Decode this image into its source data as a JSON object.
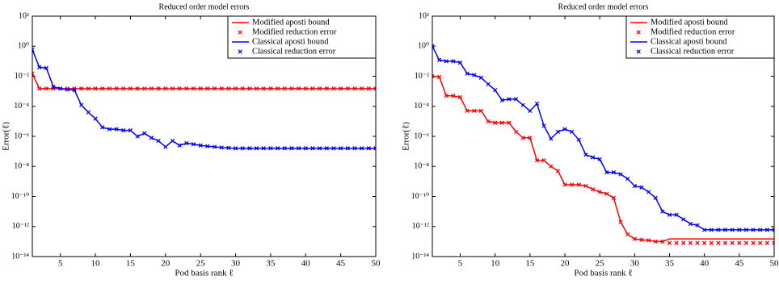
{
  "chart_data": [
    {
      "type": "line",
      "title": "Reduced order model errors",
      "xlabel": "Pod basis rank ℓ",
      "ylabel": "Error(ℓ)",
      "log_y": true,
      "legend": "upper right",
      "xlim": [
        1,
        50
      ],
      "ylim": [
        1e-14,
        100
      ],
      "xticks": [
        5,
        10,
        15,
        20,
        25,
        30,
        35,
        40,
        45,
        50
      ],
      "yticks": [
        {
          "value": 1e-14,
          "label": "10⁻¹⁴"
        },
        {
          "value": 1e-12,
          "label": "10⁻¹²"
        },
        {
          "value": 1e-10,
          "label": "10⁻¹⁰"
        },
        {
          "value": 1e-08,
          "label": "10⁻⁸"
        },
        {
          "value": 1e-06,
          "label": "10⁻⁶"
        },
        {
          "value": 0.0001,
          "label": "10⁻⁴"
        },
        {
          "value": 0.01,
          "label": "10⁻²"
        },
        {
          "value": 1,
          "label": "10⁰"
        },
        {
          "value": 100,
          "label": "10²"
        }
      ],
      "x": [
        1,
        2,
        3,
        4,
        5,
        6,
        7,
        8,
        9,
        10,
        11,
        12,
        13,
        14,
        15,
        16,
        17,
        18,
        19,
        20,
        21,
        22,
        23,
        24,
        25,
        26,
        27,
        28,
        29,
        30,
        31,
        32,
        33,
        34,
        35,
        36,
        37,
        38,
        39,
        40,
        41,
        42,
        43,
        44,
        45,
        46,
        47,
        48,
        49,
        50
      ],
      "series": [
        {
          "name": "Modified aposti bound",
          "color": "#ff0000",
          "style": "line",
          "values": [
            0.015,
            0.0015,
            0.0015,
            0.0015,
            0.0015,
            0.0015,
            0.0015,
            0.0015,
            0.0015,
            0.0015,
            0.0015,
            0.0015,
            0.0015,
            0.0015,
            0.0015,
            0.0015,
            0.0015,
            0.0015,
            0.0015,
            0.0015,
            0.0015,
            0.0015,
            0.0015,
            0.0015,
            0.0015,
            0.0015,
            0.0015,
            0.0015,
            0.0015,
            0.0015,
            0.0015,
            0.0015,
            0.0015,
            0.0015,
            0.0015,
            0.0015,
            0.0015,
            0.0015,
            0.0015,
            0.0015,
            0.0015,
            0.0015,
            0.0015,
            0.0015,
            0.0015,
            0.0015,
            0.0015,
            0.0015,
            0.0015,
            0.0015
          ]
        },
        {
          "name": "Modified reduction error",
          "color": "#ff0000",
          "style": "marker",
          "values": [
            0.015,
            0.0015,
            0.0015,
            0.0015,
            0.0015,
            0.0015,
            0.0015,
            0.0015,
            0.0015,
            0.0015,
            0.0015,
            0.0015,
            0.0015,
            0.0015,
            0.0015,
            0.0015,
            0.0015,
            0.0015,
            0.0015,
            0.0015,
            0.0015,
            0.0015,
            0.0015,
            0.0015,
            0.0015,
            0.0015,
            0.0015,
            0.0015,
            0.0015,
            0.0015,
            0.0015,
            0.0015,
            0.0015,
            0.0015,
            0.0015,
            0.0015,
            0.0015,
            0.0015,
            0.0015,
            0.0015,
            0.0015,
            0.0015,
            0.0015,
            0.0015,
            0.0015,
            0.0015,
            0.0015,
            0.0015,
            0.0015,
            0.0015
          ]
        },
        {
          "name": "Classical aposti bound",
          "color": "#0000ff",
          "style": "line",
          "values": [
            0.6,
            0.04,
            0.035,
            0.002,
            0.0015,
            0.0013,
            0.0012,
            0.00012,
            4e-05,
            1.5e-05,
            4e-06,
            3e-06,
            3e-06,
            2.5e-06,
            2.5e-06,
            1e-06,
            1.6e-06,
            8e-07,
            5e-07,
            2e-07,
            5e-07,
            2.5e-07,
            3.5e-07,
            3e-07,
            2.5e-07,
            2.2e-07,
            2e-07,
            1.8e-07,
            1.7e-07,
            1.6e-07,
            1.6e-07,
            1.6e-07,
            1.6e-07,
            1.6e-07,
            1.6e-07,
            1.6e-07,
            1.6e-07,
            1.6e-07,
            1.6e-07,
            1.6e-07,
            1.6e-07,
            1.6e-07,
            1.6e-07,
            1.6e-07,
            1.6e-07,
            1.6e-07,
            1.6e-07,
            1.6e-07,
            1.6e-07,
            1.6e-07
          ]
        },
        {
          "name": "Classical reduction error",
          "color": "#0000ff",
          "style": "marker",
          "values": [
            0.6,
            0.04,
            0.035,
            0.002,
            0.0015,
            0.0013,
            0.0012,
            0.00012,
            4e-05,
            1.5e-05,
            4e-06,
            3e-06,
            3e-06,
            2.5e-06,
            2.5e-06,
            1e-06,
            1.6e-06,
            8e-07,
            5e-07,
            2e-07,
            5e-07,
            2.5e-07,
            3.5e-07,
            3e-07,
            2.5e-07,
            2.2e-07,
            2e-07,
            1.8e-07,
            1.7e-07,
            1.6e-07,
            1.6e-07,
            1.6e-07,
            1.6e-07,
            1.6e-07,
            1.6e-07,
            1.6e-07,
            1.6e-07,
            1.6e-07,
            1.6e-07,
            1.6e-07,
            1.6e-07,
            1.6e-07,
            1.6e-07,
            1.6e-07,
            1.6e-07,
            1.6e-07,
            1.6e-07,
            1.6e-07,
            1.6e-07,
            1.6e-07
          ]
        }
      ]
    },
    {
      "type": "line",
      "title": "Reduced order model errors",
      "xlabel": "Pod basis rank ℓ",
      "ylabel": "Error(ℓ)",
      "log_y": true,
      "legend": "upper right",
      "xlim": [
        1,
        50
      ],
      "ylim": [
        1e-14,
        100
      ],
      "xticks": [
        5,
        10,
        15,
        20,
        25,
        30,
        35,
        40,
        45,
        50
      ],
      "yticks": [
        {
          "value": 1e-14,
          "label": "10⁻¹⁴"
        },
        {
          "value": 1e-12,
          "label": "10⁻¹²"
        },
        {
          "value": 1e-10,
          "label": "10⁻¹⁰"
        },
        {
          "value": 1e-08,
          "label": "10⁻⁸"
        },
        {
          "value": 1e-06,
          "label": "10⁻⁶"
        },
        {
          "value": 0.0001,
          "label": "10⁻⁴"
        },
        {
          "value": 0.01,
          "label": "10⁻²"
        },
        {
          "value": 1,
          "label": "10⁰"
        },
        {
          "value": 100,
          "label": "10²"
        }
      ],
      "x": [
        1,
        2,
        3,
        4,
        5,
        6,
        7,
        8,
        9,
        10,
        11,
        12,
        13,
        14,
        15,
        16,
        17,
        18,
        19,
        20,
        21,
        22,
        23,
        24,
        25,
        26,
        27,
        28,
        29,
        30,
        31,
        32,
        33,
        34,
        35,
        36,
        37,
        38,
        39,
        40,
        41,
        42,
        43,
        44,
        45,
        46,
        47,
        48,
        49,
        50
      ],
      "series": [
        {
          "name": "Modified aposti bound",
          "color": "#ff0000",
          "style": "line",
          "values": [
            0.01,
            0.009,
            0.0005,
            0.0005,
            0.0004,
            5e-05,
            5e-05,
            5e-05,
            1e-05,
            8e-06,
            8e-06,
            8e-06,
            2e-06,
            8e-07,
            8e-07,
            2.5e-08,
            2.5e-08,
            1e-08,
            5e-09,
            6e-10,
            6e-10,
            6e-10,
            5e-10,
            3e-10,
            2e-10,
            1.5e-10,
            8e-11,
            2e-12,
            3e-13,
            1.5e-13,
            1.3e-13,
            1.2e-13,
            1e-13,
            1e-13,
            1.5e-13,
            1.5e-13,
            1.5e-13,
            1.5e-13,
            1.5e-13,
            1.5e-13,
            1.5e-13,
            1.5e-13,
            1.5e-13,
            1.5e-13,
            1.5e-13,
            1.5e-13,
            1.5e-13,
            1.5e-13,
            1.5e-13,
            1.5e-13
          ]
        },
        {
          "name": "Modified reduction error",
          "color": "#ff0000",
          "style": "marker",
          "values": [
            0.01,
            0.009,
            0.0005,
            0.0005,
            0.0004,
            5e-05,
            5e-05,
            5e-05,
            1e-05,
            8e-06,
            8e-06,
            8e-06,
            2e-06,
            8e-07,
            8e-07,
            2.5e-08,
            2.5e-08,
            1e-08,
            5e-09,
            6e-10,
            6e-10,
            6e-10,
            5e-10,
            3e-10,
            2e-10,
            1.5e-10,
            8e-11,
            2e-12,
            3e-13,
            1.5e-13,
            1.3e-13,
            1.2e-13,
            1e-13,
            1e-13,
            8e-14,
            8e-14,
            8e-14,
            8e-14,
            8e-14,
            8e-14,
            8e-14,
            8e-14,
            8e-14,
            8e-14,
            8e-14,
            8e-14,
            8e-14,
            8e-14,
            8e-14,
            8e-14
          ]
        },
        {
          "name": "Classical aposti bound",
          "color": "#0000ff",
          "style": "line",
          "values": [
            1,
            0.12,
            0.1,
            0.1,
            0.08,
            0.015,
            0.012,
            0.008,
            0.003,
            0.0012,
            0.00025,
            0.0003,
            0.0003,
            0.00012,
            5e-05,
            0.00015,
            5e-06,
            7e-07,
            2e-06,
            3e-06,
            2e-06,
            6e-07,
            6e-08,
            4e-08,
            3e-08,
            4e-09,
            4e-09,
            3e-09,
            1.5e-09,
            5e-10,
            4e-10,
            2e-10,
            8e-11,
            1e-11,
            6e-12,
            6e-12,
            3e-12,
            1.5e-12,
            1.2e-12,
            6e-13,
            6e-13,
            6e-13,
            6e-13,
            6e-13,
            6e-13,
            6e-13,
            6e-13,
            6e-13,
            6e-13,
            6e-13
          ]
        },
        {
          "name": "Classical reduction error",
          "color": "#0000ff",
          "style": "marker",
          "values": [
            1,
            0.12,
            0.1,
            0.1,
            0.08,
            0.015,
            0.012,
            0.008,
            0.003,
            0.0012,
            0.00025,
            0.0003,
            0.0003,
            0.00012,
            5e-05,
            0.00015,
            5e-06,
            7e-07,
            2e-06,
            3e-06,
            2e-06,
            6e-07,
            6e-08,
            4e-08,
            3e-08,
            4e-09,
            4e-09,
            3e-09,
            1.5e-09,
            5e-10,
            4e-10,
            2e-10,
            8e-11,
            1e-11,
            6e-12,
            6e-12,
            3e-12,
            1.5e-12,
            1.2e-12,
            6e-13,
            6e-13,
            6e-13,
            6e-13,
            6e-13,
            6e-13,
            6e-13,
            6e-13,
            6e-13,
            6e-13,
            6e-13
          ]
        }
      ]
    }
  ]
}
